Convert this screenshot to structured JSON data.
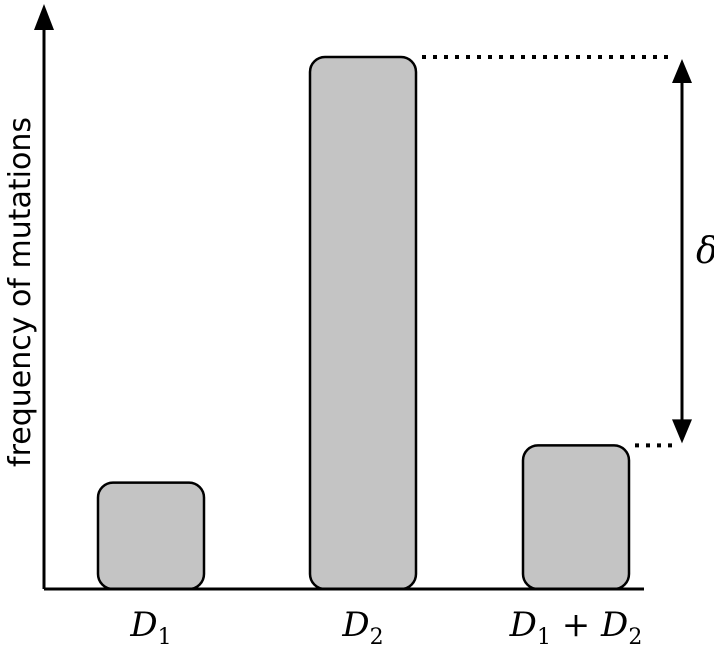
{
  "chart_data": {
    "type": "bar",
    "ylabel": "frequency of mutations",
    "xlabel": "",
    "categories": [
      {
        "base": "D",
        "sub": "1",
        "op": "",
        "base2": "",
        "sub2": ""
      },
      {
        "base": "D",
        "sub": "2",
        "op": "",
        "base2": "",
        "sub2": ""
      },
      {
        "base": "D",
        "sub": "1",
        "op": " + ",
        "base2": "D",
        "sub2": "2"
      }
    ],
    "values": [
      20,
      100,
      27
    ],
    "ylim": [
      0,
      100
    ],
    "bar_color": "#c4c4c4",
    "annotation": {
      "label": "δ",
      "from_category": 1,
      "to_category": 2,
      "style": "double-arrow-dotted"
    }
  }
}
